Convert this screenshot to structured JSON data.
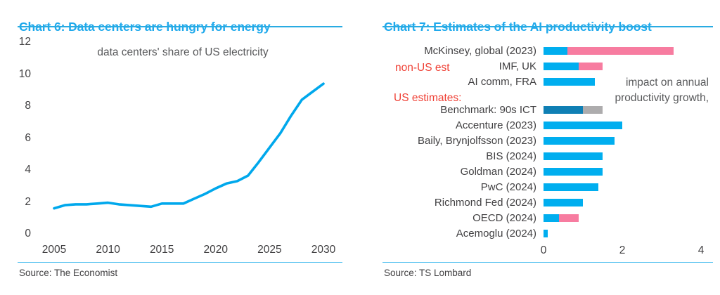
{
  "colors": {
    "title_blue": "#1FA9EC",
    "rule_blue": "#29ABE2",
    "separator_blue": "#4FBFEF",
    "line_blue": "#00A8EC",
    "bar_blue": "#00AEEF",
    "bar_pink": "#F77CA0",
    "bar_darkblue": "#0F7FB4",
    "bar_gray": "#ADACAD",
    "red_label": "#EF4136",
    "text_dark": "#414042",
    "text_gray": "#58595B"
  },
  "left": {
    "source": "Source: The Economist",
    "chart_data": {
      "type": "line",
      "title": "Chart 6: Data centers are hungry for energy",
      "annotation": "data centers' share of US electricity",
      "x": [
        2005,
        2006,
        2007,
        2008,
        2009,
        2010,
        2011,
        2012,
        2013,
        2014,
        2015,
        2016,
        2017,
        2018,
        2019,
        2020,
        2021,
        2022,
        2023,
        2024,
        2025,
        2026,
        2027,
        2028,
        2029,
        2030
      ],
      "values": [
        1.6,
        1.8,
        1.85,
        1.85,
        1.9,
        1.95,
        1.85,
        1.8,
        1.75,
        1.7,
        1.9,
        1.9,
        1.9,
        2.2,
        2.5,
        2.85,
        3.15,
        3.3,
        3.65,
        4.5,
        5.4,
        6.3,
        7.4,
        8.4,
        8.9,
        9.4
      ],
      "xticks": [
        2005,
        2010,
        2015,
        2020,
        2025,
        2030
      ],
      "yticks": [
        0,
        2,
        4,
        6,
        8,
        10,
        12
      ],
      "xlim": [
        2005,
        2030
      ],
      "ylim": [
        0,
        12
      ],
      "grid": false,
      "legend": false
    }
  },
  "right": {
    "source": "Source: TS Lombard",
    "chart_data": {
      "type": "bar",
      "orientation": "horizontal",
      "title": "Chart 7: Estimates of the AI productivity boost",
      "annotation_lines": [
        "impact on annual",
        "productivity growth,"
      ],
      "group_labels": {
        "non_us": "non-US est",
        "us": "US estimates:"
      },
      "xticks": [
        0,
        2,
        4
      ],
      "xlim": [
        0,
        4.4
      ],
      "grid": false,
      "legend": false,
      "rows": [
        {
          "label": "McKinsey, global (2023)",
          "group": "non-US",
          "segments": [
            {
              "color": "blue",
              "value": 0.6
            },
            {
              "color": "pink",
              "value": 2.7
            }
          ]
        },
        {
          "label": "IMF, UK",
          "group": "non-US",
          "segments": [
            {
              "color": "blue",
              "value": 0.9
            },
            {
              "color": "pink",
              "value": 0.6
            }
          ]
        },
        {
          "label": "AI comm, FRA",
          "group": "non-US",
          "segments": [
            {
              "color": "blue",
              "value": 1.3
            }
          ]
        },
        {
          "label": "Benchmark: 90s ICT",
          "group": "US",
          "segments": [
            {
              "color": "darkblue",
              "value": 1.0
            },
            {
              "color": "gray",
              "value": 0.5
            }
          ]
        },
        {
          "label": "Accenture (2023)",
          "group": "US",
          "segments": [
            {
              "color": "blue",
              "value": 2.0
            }
          ]
        },
        {
          "label": "Baily, Brynjolfsson (2023)",
          "group": "US",
          "segments": [
            {
              "color": "blue",
              "value": 1.8
            }
          ]
        },
        {
          "label": "BIS (2024)",
          "group": "US",
          "segments": [
            {
              "color": "blue",
              "value": 1.5
            }
          ]
        },
        {
          "label": "Goldman (2024)",
          "group": "US",
          "segments": [
            {
              "color": "blue",
              "value": 1.5
            }
          ]
        },
        {
          "label": "PwC (2024)",
          "group": "US",
          "segments": [
            {
              "color": "blue",
              "value": 1.4
            }
          ]
        },
        {
          "label": "Richmond Fed (2024)",
          "group": "US",
          "segments": [
            {
              "color": "blue",
              "value": 1.0
            }
          ]
        },
        {
          "label": "OECD (2024)",
          "group": "US",
          "segments": [
            {
              "color": "blue",
              "value": 0.4
            },
            {
              "color": "pink",
              "value": 0.5
            }
          ]
        },
        {
          "label": "Acemoglu (2024)",
          "group": "US",
          "segments": [
            {
              "color": "blue",
              "value": 0.1
            }
          ]
        }
      ]
    }
  }
}
